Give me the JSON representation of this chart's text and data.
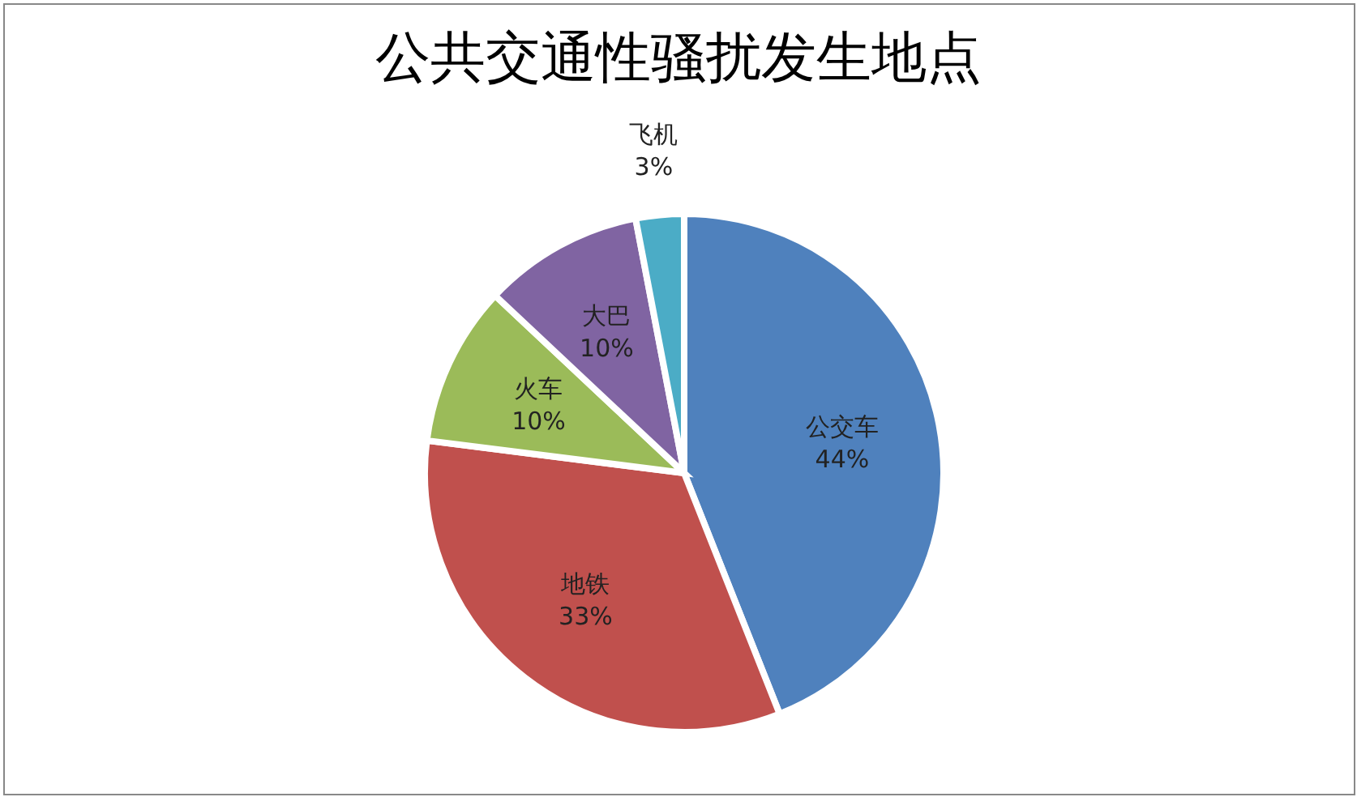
{
  "chart_data": {
    "type": "pie",
    "title": "公共交通性骚扰发生地点",
    "categories": [
      "公交车",
      "地铁",
      "火车",
      "大巴",
      "飞机"
    ],
    "values": [
      44,
      33,
      10,
      10,
      3
    ],
    "value_labels": [
      "44%",
      "33%",
      "10%",
      "10%",
      "3%"
    ],
    "colors": [
      "#4f81bd",
      "#c0504d",
      "#9bbb59",
      "#8064a2",
      "#4bacc6"
    ]
  }
}
